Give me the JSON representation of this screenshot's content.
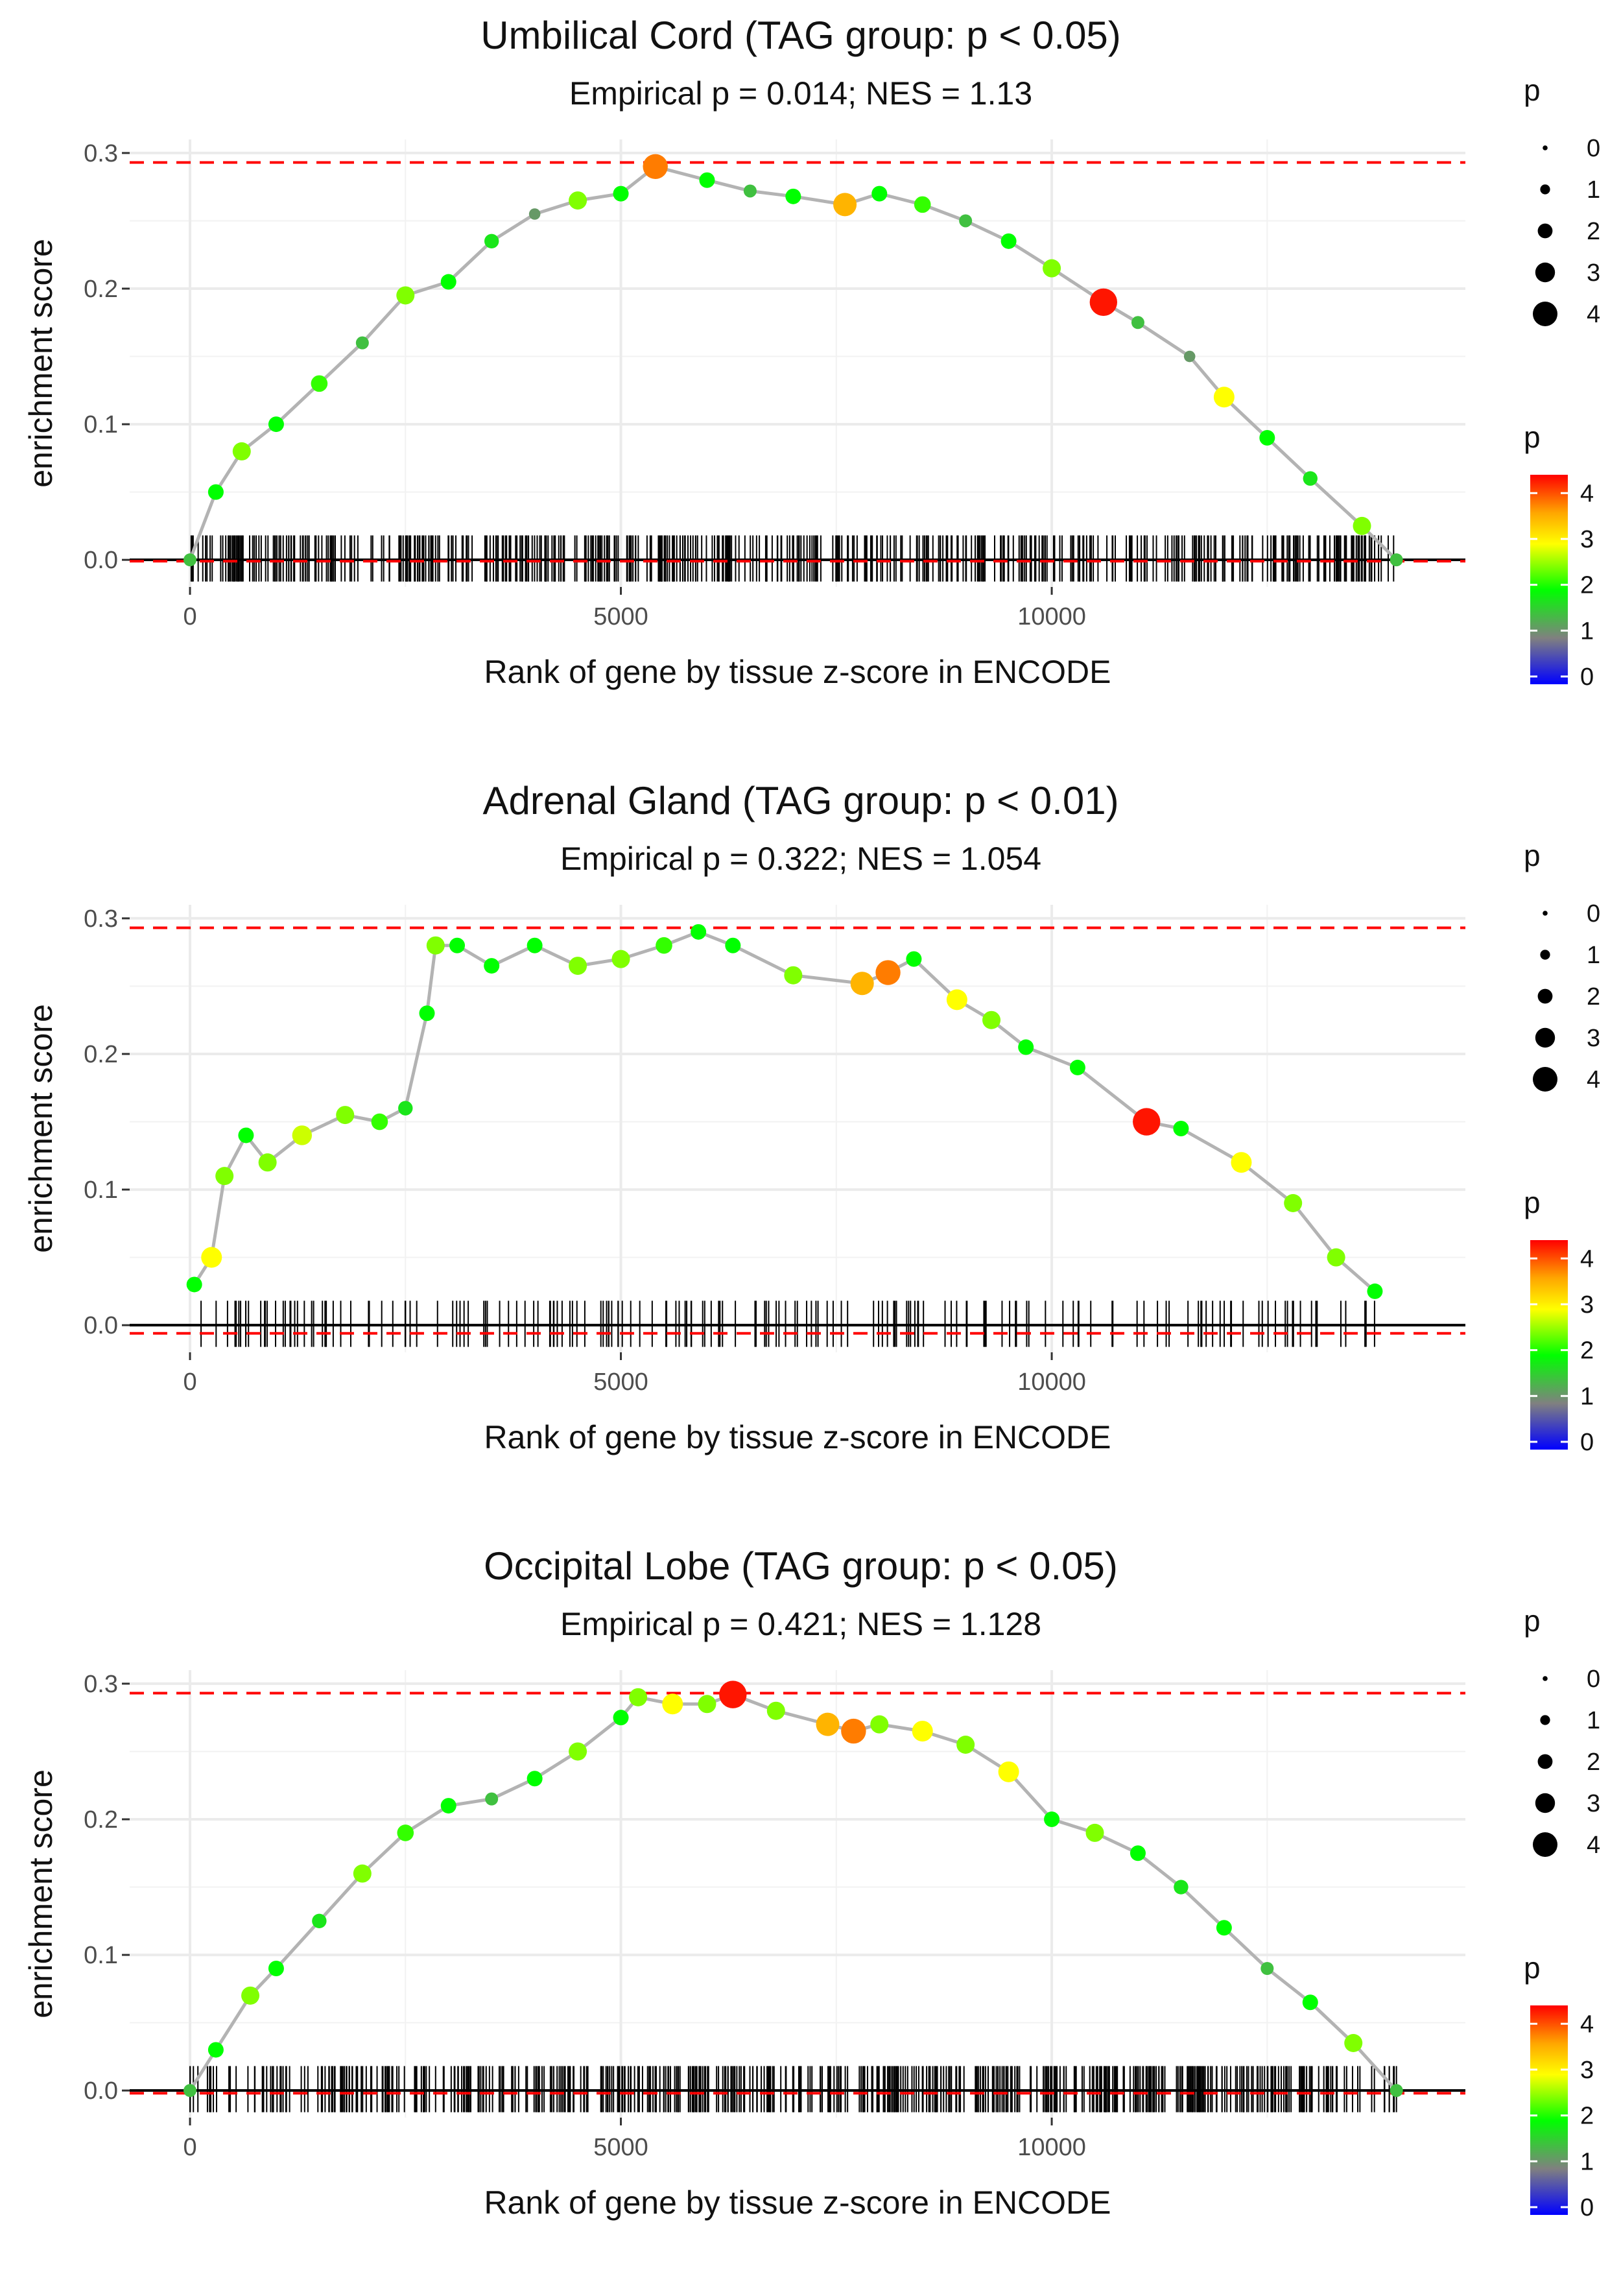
{
  "legend": {
    "size_title": "p",
    "color_title": "p",
    "size_labels": [
      "0",
      "1",
      "2",
      "3",
      "4"
    ],
    "color_labels": [
      "4",
      "3",
      "2",
      "1",
      "0"
    ],
    "gradient_colors": [
      "#FF0000",
      "#FFA500",
      "#FFFF00",
      "#00FF00",
      "#808080",
      "#0000FF"
    ]
  },
  "chart_data": [
    {
      "type": "line",
      "title": "Umbilical Cord (TAG group: p < 0.05)",
      "subtitle": "Empirical p = 0.014; NES = 1.13",
      "xlabel": "Rank of gene by tissue z-score in ENCODE",
      "ylabel": "enrichment score",
      "xlim": [
        -700,
        14800
      ],
      "ylim": [
        -0.02,
        0.31
      ],
      "xticks": [
        0,
        5000,
        10000
      ],
      "xtick_labels": [
        "0",
        "5000",
        "10000"
      ],
      "yticks": [
        0.0,
        0.1,
        0.2,
        0.3
      ],
      "ytick_labels": [
        "0.0",
        "0.1",
        "0.2",
        "0.3"
      ],
      "max_es_line": 0.293,
      "min_es_line": -0.001,
      "x": [
        0,
        300,
        600,
        1000,
        1500,
        2000,
        2500,
        3000,
        3500,
        4000,
        4500,
        5000,
        5400,
        6000,
        6500,
        7000,
        7600,
        8000,
        8500,
        9000,
        9500,
        10000,
        10600,
        11000,
        11600,
        12000,
        12500,
        13000,
        13600,
        14000
      ],
      "y": [
        0.0,
        0.05,
        0.08,
        0.1,
        0.13,
        0.16,
        0.195,
        0.205,
        0.235,
        0.255,
        0.265,
        0.27,
        0.29,
        0.28,
        0.272,
        0.268,
        0.262,
        0.27,
        0.262,
        0.25,
        0.235,
        0.215,
        0.19,
        0.175,
        0.15,
        0.12,
        0.09,
        0.06,
        0.025,
        0.0
      ],
      "p_sig": [
        1.5,
        2,
        2.5,
        2,
        2.2,
        1.5,
        2.5,
        2,
        1.8,
        1.2,
        2.5,
        2,
        3.8,
        2,
        1.5,
        2,
        3.5,
        2,
        2.2,
        1.5,
        2,
        2.5,
        4.3,
        1.5,
        1.2,
        3,
        2,
        1.8,
        2.5,
        1.5
      ],
      "rug_count": 520
    },
    {
      "type": "line",
      "title": "Adrenal Gland (TAG group: p < 0.01)",
      "subtitle": "Empirical p = 0.322; NES = 1.054",
      "xlabel": "Rank of gene by tissue z-score in ENCODE",
      "ylabel": "enrichment score",
      "xlim": [
        -700,
        14800
      ],
      "ylim": [
        -0.02,
        0.31
      ],
      "xticks": [
        0,
        5000,
        10000
      ],
      "xtick_labels": [
        "0",
        "5000",
        "10000"
      ],
      "yticks": [
        0.0,
        0.1,
        0.2,
        0.3
      ],
      "ytick_labels": [
        "0.0",
        "0.1",
        "0.2",
        "0.3"
      ],
      "max_es_line": 0.293,
      "min_es_line": -0.006,
      "x": [
        50,
        250,
        400,
        650,
        900,
        1300,
        1800,
        2200,
        2500,
        2750,
        2850,
        3100,
        3500,
        4000,
        4500,
        5000,
        5500,
        5900,
        6300,
        7000,
        7800,
        8100,
        8400,
        8900,
        9300,
        9700,
        10300,
        11100,
        11500,
        12200,
        12800,
        13300,
        13750
      ],
      "y": [
        0.03,
        0.05,
        0.11,
        0.14,
        0.12,
        0.14,
        0.155,
        0.15,
        0.16,
        0.23,
        0.28,
        0.28,
        0.265,
        0.28,
        0.265,
        0.27,
        0.28,
        0.29,
        0.28,
        0.258,
        0.252,
        0.26,
        0.27,
        0.24,
        0.225,
        0.205,
        0.19,
        0.15,
        0.145,
        0.12,
        0.09,
        0.05,
        0.025
      ],
      "p_sig": [
        2,
        3,
        2.5,
        2,
        2.5,
        2.8,
        2.5,
        2.2,
        1.8,
        2,
        2.5,
        2,
        2,
        2,
        2.5,
        2.5,
        2.2,
        2,
        2,
        2.5,
        3.5,
        3.8,
        2,
        3,
        2.5,
        2,
        2,
        4.3,
        2,
        3,
        2.5,
        2.5,
        2
      ],
      "rug_count": 180
    },
    {
      "type": "line",
      "title": "Occipital Lobe (TAG group: p < 0.05)",
      "subtitle": "Empirical p = 0.421; NES = 1.128",
      "xlabel": "Rank of gene by tissue z-score in ENCODE",
      "ylabel": "enrichment score",
      "xlim": [
        -700,
        14800
      ],
      "ylim": [
        -0.02,
        0.31
      ],
      "xticks": [
        0,
        5000,
        10000
      ],
      "xtick_labels": [
        "0",
        "5000",
        "10000"
      ],
      "yticks": [
        0.0,
        0.1,
        0.2,
        0.3
      ],
      "ytick_labels": [
        "0.0",
        "0.1",
        "0.2",
        "0.3"
      ],
      "max_es_line": 0.293,
      "min_es_line": -0.002,
      "x": [
        0,
        300,
        700,
        1000,
        1500,
        2000,
        2500,
        3000,
        3500,
        4000,
        4500,
        5000,
        5200,
        5600,
        6000,
        6300,
        6800,
        7400,
        7700,
        8000,
        8500,
        9000,
        9500,
        10000,
        10500,
        11000,
        11500,
        12000,
        12500,
        13000,
        13500,
        14000
      ],
      "y": [
        0.0,
        0.03,
        0.07,
        0.09,
        0.125,
        0.16,
        0.19,
        0.21,
        0.215,
        0.23,
        0.25,
        0.275,
        0.29,
        0.285,
        0.285,
        0.292,
        0.28,
        0.27,
        0.265,
        0.27,
        0.265,
        0.255,
        0.235,
        0.2,
        0.19,
        0.175,
        0.15,
        0.12,
        0.09,
        0.065,
        0.035,
        0.0
      ],
      "p_sig": [
        1.5,
        2,
        2.5,
        2,
        1.8,
        2.5,
        2.2,
        2,
        1.5,
        2,
        2.5,
        2,
        2.5,
        3,
        2.5,
        4.3,
        2.5,
        3.5,
        3.8,
        2.5,
        3,
        2.5,
        3,
        2,
        2.5,
        2,
        1.8,
        2,
        1.5,
        2,
        2.5,
        1.5
      ],
      "rug_count": 560
    }
  ]
}
